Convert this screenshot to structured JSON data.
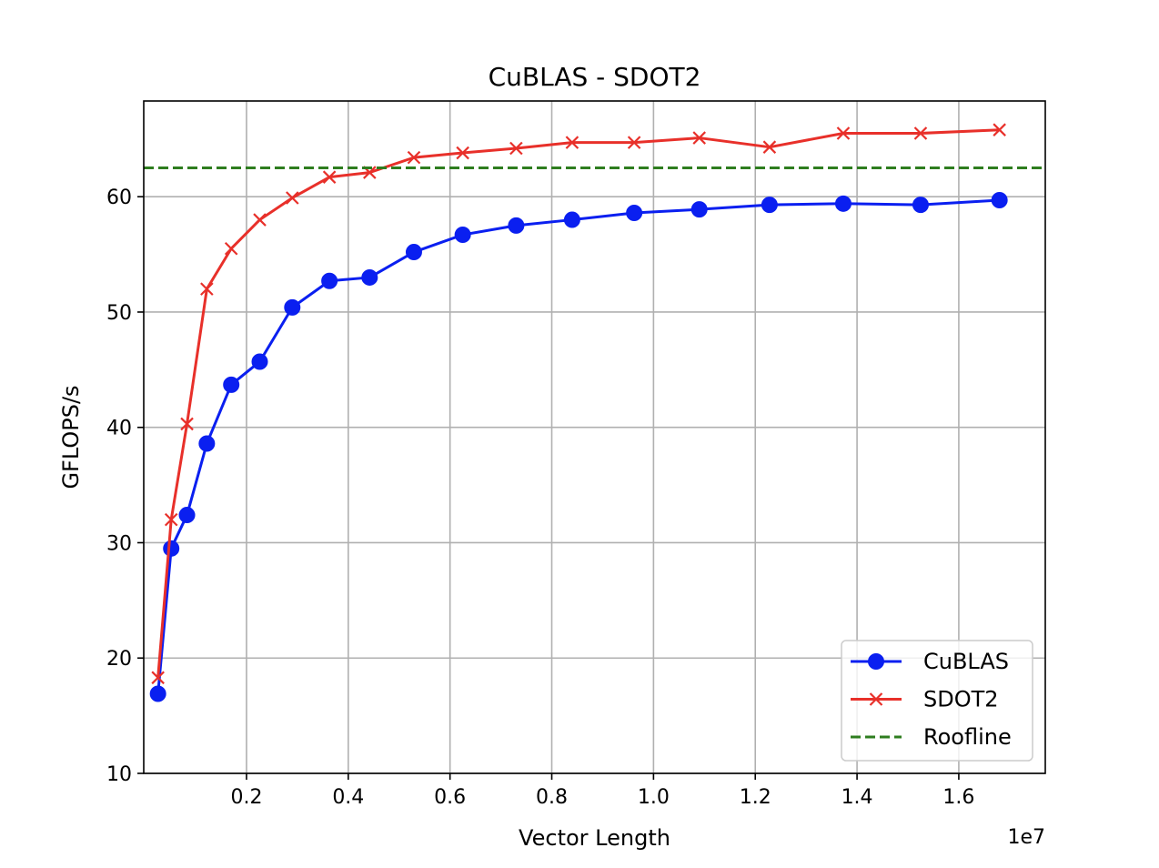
{
  "chart_data": {
    "type": "line",
    "title": "CuBLAS - SDOT2",
    "xlabel": "Vector Length",
    "ylabel": "GFLOPS/s",
    "x_offset_text": "1e7",
    "xlim": [
      -0.002,
      1.77
    ],
    "ylim": [
      10,
      68.3
    ],
    "x_ticks": [
      0.2,
      0.4,
      0.6,
      0.8,
      1.0,
      1.2,
      1.4,
      1.6
    ],
    "x_tick_labels": [
      "0.2",
      "0.4",
      "0.6",
      "0.8",
      "1.0",
      "1.2",
      "1.4",
      "1.6"
    ],
    "y_ticks": [
      10,
      20,
      30,
      40,
      50,
      60
    ],
    "y_tick_labels": [
      "10",
      "20",
      "30",
      "40",
      "50",
      "60"
    ],
    "grid": true,
    "legend_position": "lower-right",
    "series": [
      {
        "name": "CuBLAS",
        "color": "#0a1ff0",
        "marker": "circle",
        "line_style": "solid",
        "x": [
          0.026,
          0.052,
          0.083,
          0.122,
          0.17,
          0.226,
          0.29,
          0.363,
          0.442,
          0.529,
          0.625,
          0.73,
          0.84,
          0.962,
          1.09,
          1.228,
          1.373,
          1.525,
          1.68
        ],
        "y": [
          16.9,
          29.5,
          32.4,
          38.6,
          43.7,
          45.7,
          50.4,
          52.7,
          53.0,
          55.2,
          56.7,
          57.5,
          58.0,
          58.6,
          58.9,
          59.3,
          59.4,
          59.3,
          59.7
        ]
      },
      {
        "name": "SDOT2",
        "color": "#e8302a",
        "marker": "x",
        "line_style": "solid",
        "x": [
          0.026,
          0.052,
          0.083,
          0.122,
          0.17,
          0.226,
          0.29,
          0.363,
          0.442,
          0.529,
          0.625,
          0.73,
          0.84,
          0.962,
          1.09,
          1.228,
          1.373,
          1.525,
          1.68
        ],
        "y": [
          18.3,
          32.0,
          40.3,
          52.0,
          55.5,
          58.0,
          59.9,
          61.7,
          62.1,
          63.4,
          63.8,
          64.2,
          64.7,
          64.7,
          65.1,
          64.3,
          65.5,
          65.5,
          65.8
        ]
      },
      {
        "name": "Roofline",
        "color": "#2e7d1f",
        "marker": "none",
        "line_style": "dashed",
        "x": [
          -0.002,
          1.77
        ],
        "y": [
          62.5,
          62.5
        ]
      }
    ]
  }
}
